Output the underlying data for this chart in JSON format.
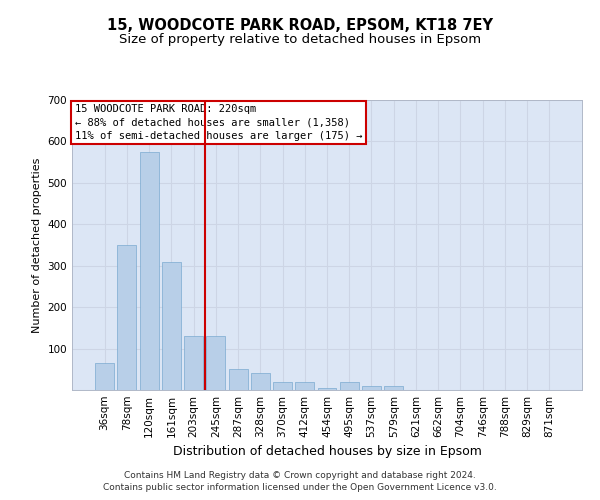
{
  "title_line1": "15, WOODCOTE PARK ROAD, EPSOM, KT18 7EY",
  "title_line2": "Size of property relative to detached houses in Epsom",
  "xlabel": "Distribution of detached houses by size in Epsom",
  "ylabel": "Number of detached properties",
  "categories": [
    "36sqm",
    "78sqm",
    "120sqm",
    "161sqm",
    "203sqm",
    "245sqm",
    "287sqm",
    "328sqm",
    "370sqm",
    "412sqm",
    "454sqm",
    "495sqm",
    "537sqm",
    "579sqm",
    "621sqm",
    "662sqm",
    "704sqm",
    "746sqm",
    "788sqm",
    "829sqm",
    "871sqm"
  ],
  "values": [
    65,
    350,
    575,
    310,
    130,
    130,
    50,
    40,
    20,
    20,
    5,
    20,
    10,
    10,
    0,
    0,
    0,
    0,
    0,
    0,
    0
  ],
  "bar_color": "#b8cfe8",
  "bar_edge_color": "#7aaad0",
  "vline_color": "#cc0000",
  "annotation_text": "15 WOODCOTE PARK ROAD: 220sqm\n← 88% of detached houses are smaller (1,358)\n11% of semi-detached houses are larger (175) →",
  "annotation_box_facecolor": "#ffffff",
  "annotation_box_edgecolor": "#cc0000",
  "ylim": [
    0,
    700
  ],
  "yticks": [
    0,
    100,
    200,
    300,
    400,
    500,
    600,
    700
  ],
  "grid_color": "#cdd5e5",
  "background_color": "#dce6f5",
  "footer_line1": "Contains HM Land Registry data © Crown copyright and database right 2024.",
  "footer_line2": "Contains public sector information licensed under the Open Government Licence v3.0.",
  "title1_fontsize": 10.5,
  "title2_fontsize": 9.5,
  "xlabel_fontsize": 9,
  "ylabel_fontsize": 8,
  "tick_fontsize": 7.5,
  "annotation_fontsize": 7.5,
  "footer_fontsize": 6.5
}
